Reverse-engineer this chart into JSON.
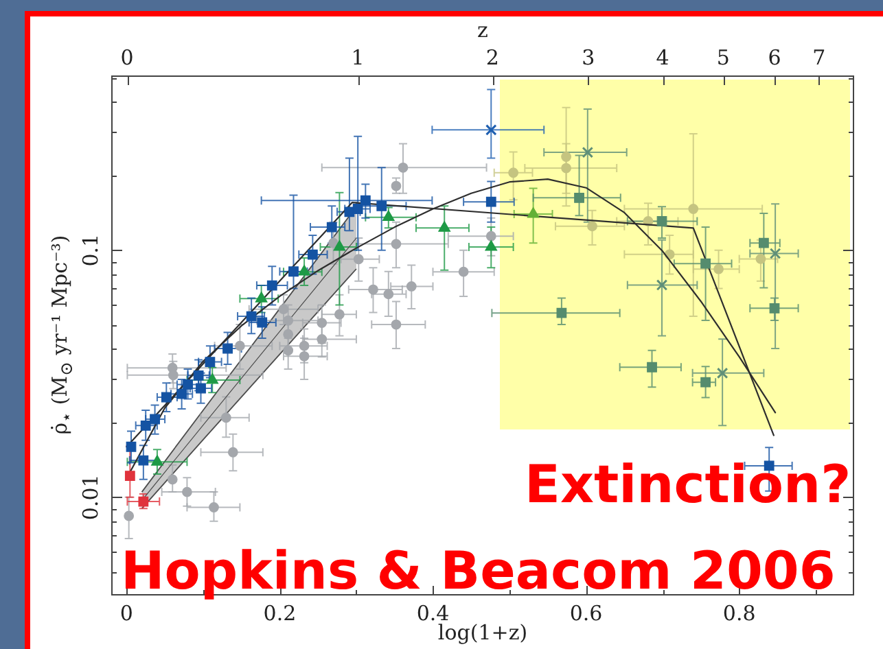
{
  "chart_data": {
    "type": "scatter",
    "xlabel": "log(1+z)",
    "ylabel": "ρ̇$_{⋆}$ (M$_{⊙}$ yr⁻¹ Mpc⁻³)",
    "x2label": "z",
    "xlim": [
      -0.02,
      0.95
    ],
    "xticks": [
      0,
      {
        "value": 0.1,
        "label": null
      },
      0.2,
      {
        "value": 0.3,
        "label": null
      },
      0.4,
      {
        "value": 0.5,
        "label": null
      },
      0.6,
      {
        "value": 0.7,
        "label": null
      },
      0.8,
      {
        "value": 0.9,
        "label": null
      }
    ],
    "ylim": [
      0.004,
      0.51
    ],
    "yticks": [
      {
        "value": 0.005,
        "label": null
      },
      {
        "value": 0.006,
        "label": null
      },
      {
        "value": 0.007,
        "label": null
      },
      {
        "value": 0.008,
        "label": null
      },
      {
        "value": 0.009,
        "label": null
      },
      0.01,
      {
        "value": 0.02,
        "label": null
      },
      {
        "value": 0.03,
        "label": null
      },
      {
        "value": 0.04,
        "label": null
      },
      {
        "value": 0.05,
        "label": null
      },
      {
        "value": 0.06,
        "label": null
      },
      {
        "value": 0.07,
        "label": null
      },
      {
        "value": 0.08,
        "label": null
      },
      {
        "value": 0.09,
        "label": null
      },
      0.1,
      {
        "value": 0.2,
        "label": null
      },
      {
        "value": 0.3,
        "label": null
      },
      {
        "value": 0.4,
        "label": null
      },
      {
        "value": 0.5,
        "label": null
      }
    ],
    "log": "y",
    "annotations": [
      "Extinction?",
      "Hopkins & Beacom 2006",
      "0",
      "1",
      "2",
      "3",
      "4",
      "5",
      "6",
      "7"
    ],
    "series": [
      {
        "type": "line",
        "color": "#4d4d4d",
        "marker": "none",
        "x": [
          0.02,
          0.1,
          0.2,
          0.3
        ],
        "values": [
          0.0097,
          0.0196,
          0.0469,
          0.112
        ],
        "lower": [
          0.009,
          0.0171,
          0.0379,
          0.084
        ],
        "upper": [
          0.0105,
          0.0225,
          0.058,
          0.15
        ]
      },
      {
        "color": "#a4a7ac",
        "marker": "circle",
        "x": [
          0.003,
          0.06,
          0.079,
          0.114,
          0.13,
          0.139,
          0.06,
          0.061,
          0.148,
          0.205,
          0.211,
          0.211,
          0.211,
          0.232,
          0.232,
          0.255,
          0.255,
          0.278,
          0.27,
          0.303,
          0.322,
          0.342,
          0.372,
          0.352,
          0.352,
          0.352,
          0.361,
          0.44,
          0.476,
          0.505,
          0.574,
          0.574,
          0.608,
          0.681,
          0.709,
          0.74,
          0.773,
          0.828
        ],
        "values": [
          0.0084,
          0.0118,
          0.0105,
          0.0091,
          0.021,
          0.0152,
          0.0334,
          0.0312,
          0.041,
          0.0577,
          0.0519,
          0.0457,
          0.0393,
          0.041,
          0.0372,
          0.0508,
          0.0436,
          0.055,
          0.107,
          0.092,
          0.0693,
          0.0664,
          0.0714,
          0.05,
          0.106,
          0.182,
          0.216,
          0.0818,
          0.114,
          0.206,
          0.239,
          0.215,
          0.125,
          0.131,
          0.0962,
          0.147,
          0.0839,
          0.0922
        ],
        "colors": [
          null,
          null,
          null,
          null,
          null,
          null,
          null,
          null,
          null,
          null,
          null,
          null,
          null,
          null,
          null,
          null,
          null,
          null,
          null,
          null,
          null,
          null,
          null,
          null,
          null,
          null,
          null,
          null,
          null,
          "#c5c480",
          "#c5c480",
          "#c5c480",
          "#c5c480",
          "#c5c480",
          "#c5c480",
          "#c5c480",
          "#c5c480",
          "#c5c480"
        ],
        "errors": [
          [
            0.0068,
            0.01
          ],
          [
            0.0105,
            0.0135
          ],
          [
            0.0092,
            0.012
          ],
          [
            0.008,
            0.0105
          ],
          [
            0.0175,
            0.0255
          ],
          [
            0.0128,
            0.018
          ],
          [
            0.029,
            0.038
          ],
          [
            0.0275,
            0.0355
          ],
          [
            0.033,
            0.05
          ],
          [
            0.05,
            0.066
          ],
          [
            0.044,
            0.06
          ],
          [
            0.039,
            0.053
          ],
          [
            0.033,
            0.046
          ],
          [
            0.035,
            0.048
          ],
          [
            0.03,
            0.044
          ],
          [
            0.042,
            0.06
          ],
          [
            0.037,
            0.051
          ],
          [
            0.045,
            0.066
          ],
          [
            0.088,
            0.13
          ],
          [
            0.075,
            0.112
          ],
          [
            0.056,
            0.085
          ],
          [
            0.054,
            0.082
          ],
          [
            0.058,
            0.087
          ],
          [
            0.04,
            0.062
          ],
          [
            0.085,
            0.13
          ],
          [
            0.17,
            0.196
          ],
          [
            0.17,
            0.27
          ],
          [
            0.065,
            0.1
          ],
          [
            0.095,
            0.135
          ],
          [
            0.16,
            0.25
          ],
          [
            0.151,
            0.378
          ],
          [
            0.17,
            0.27
          ],
          [
            0.105,
            0.145
          ],
          [
            0.105,
            0.155
          ],
          [
            0.08,
            0.115
          ],
          [
            0.054,
            0.296
          ],
          [
            0.07,
            0.1
          ],
          [
            0.075,
            0.11
          ]
        ],
        "xerrors": [
          null,
          null,
          [
            0.046,
            0.116
          ],
          [
            0.079,
            0.148
          ],
          [
            0.097,
            0.16
          ],
          [
            0.097,
            0.178
          ],
          [
            0.001,
            0.13
          ],
          [
            0.001,
            0.178
          ],
          [
            0.115,
            0.19
          ],
          [
            0.16,
            0.25
          ],
          [
            0.17,
            0.25
          ],
          null,
          null,
          [
            0.2,
            0.262
          ],
          [
            0.205,
            0.262
          ],
          [
            0.23,
            0.28
          ],
          [
            0.23,
            0.3
          ],
          [
            0.255,
            0.3
          ],
          null,
          [
            0.28,
            0.33
          ],
          [
            0.29,
            0.36
          ],
          [
            0.32,
            0.365
          ],
          [
            0.345,
            0.4
          ],
          [
            0.32,
            0.39
          ],
          [
            0.3,
            0.42
          ],
          null,
          [
            0.255,
            0.47
          ],
          [
            0.4,
            0.48
          ],
          [
            0.42,
            0.505
          ],
          [
            0.48,
            0.53
          ],
          null,
          [
            0.52,
            0.64
          ],
          [
            0.56,
            0.65
          ],
          [
            0.64,
            0.72
          ],
          [
            0.65,
            0.74
          ],
          [
            0.65,
            0.83
          ],
          [
            0.74,
            0.8
          ],
          [
            0.8,
            0.85
          ]
        ]
      },
      {
        "type": "line",
        "color": "#2e2e2e",
        "marker": "none",
        "x": [
          0,
          0.2945,
          0.74,
          0.845
        ],
        "values": [
          0.016,
          0.156,
          0.123,
          0.0178
        ]
      },
      {
        "type": "line",
        "color": "#2e2e2e",
        "marker": "none",
        "x": [
          0,
          0.05,
          0.1,
          0.15,
          0.2,
          0.25,
          0.3,
          0.35,
          0.4,
          0.45,
          0.5,
          0.55,
          0.6,
          0.65,
          0.7,
          0.75,
          0.8,
          0.847
        ],
        "values": [
          0.0119,
          0.023,
          0.0355,
          0.0494,
          0.0651,
          0.0827,
          0.102,
          0.124,
          0.147,
          0.17,
          0.189,
          0.194,
          0.179,
          0.142,
          0.099,
          0.062,
          0.037,
          0.022
        ]
      },
      {
        "color": "#e0333c",
        "marker": "square",
        "x": [
          0.0045,
          0.022
        ],
        "values": [
          0.0122,
          0.0096
        ],
        "errors": [
          [
            0.01,
            0.0161
          ],
          [
            0.009,
            0.0103
          ]
        ],
        "xerrors": [
          null,
          [
            0.001,
            0.043
          ]
        ]
      },
      {
        "color": "#1e9a46",
        "marker": "triangle",
        "x": [
          0.04,
          0.112,
          0.176,
          0.232,
          0.278,
          0.342,
          0.415,
          0.476,
          0.531
        ],
        "values": [
          0.0139,
          0.0298,
          0.0637,
          0.0818,
          0.103,
          0.136,
          0.123,
          0.103,
          0.14
        ],
        "colors": [
          null,
          null,
          null,
          null,
          null,
          null,
          null,
          null,
          "#62b036"
        ],
        "errors": [
          [
            0.0124,
            0.0156
          ],
          [
            0.0265,
            0.0335
          ],
          [
            0.056,
            0.072
          ],
          [
            0.072,
            0.093
          ],
          [
            0.06,
            0.171
          ],
          [
            0.123,
            0.149
          ],
          [
            0.083,
            0.151
          ],
          [
            0.085,
            0.124
          ],
          [
            0.107,
            0.178
          ]
        ],
        "xerrors": [
          [
            0.001,
            0.079
          ],
          [
            0.079,
            0.148
          ],
          [
            0.148,
            0.198
          ],
          [
            0.205,
            0.255
          ],
          [
            0.253,
            0.3
          ],
          [
            0.312,
            0.378
          ],
          [
            0.378,
            0.447
          ],
          [
            0.447,
            0.505
          ],
          [
            0.506,
            0.556
          ]
        ]
      },
      {
        "color": "#1453a3",
        "marker": "square",
        "x": [
          0.006,
          0.022,
          0.025,
          0.037,
          0.052,
          0.072,
          0.08,
          0.094,
          0.097,
          0.109,
          0.132,
          0.163,
          0.177,
          0.19,
          0.218,
          0.243,
          0.268,
          0.291,
          0.302,
          0.312,
          0.333,
          0.476,
          0.568,
          0.591,
          0.686,
          0.699,
          0.756,
          0.756,
          0.832,
          0.839,
          0.846
        ],
        "values": [
          0.016,
          0.0141,
          0.0195,
          0.0207,
          0.0254,
          0.0262,
          0.0286,
          0.0311,
          0.0276,
          0.0353,
          0.04,
          0.054,
          0.051,
          0.072,
          0.082,
          0.096,
          0.124,
          0.143,
          0.147,
          0.159,
          0.151,
          0.157,
          0.0557,
          0.163,
          0.0336,
          0.131,
          0.0292,
          0.0883,
          0.107,
          0.0134,
          0.0582
        ],
        "colors": [
          null,
          null,
          null,
          null,
          null,
          null,
          null,
          null,
          null,
          null,
          null,
          null,
          null,
          null,
          null,
          null,
          null,
          null,
          null,
          null,
          null,
          null,
          "#558c6e",
          "#558c6e",
          "#558c6e",
          "#558c6e",
          "#558c6e",
          "#558c6e",
          "#558c6e",
          null,
          "#558c6e"
        ],
        "errors": [
          [
            0.0138,
            0.0185
          ],
          [
            0.0118,
            0.0162
          ],
          [
            0.017,
            0.0225
          ],
          [
            0.018,
            0.0236
          ],
          [
            0.0222,
            0.029
          ],
          [
            0.0228,
            0.03
          ],
          [
            0.025,
            0.033
          ],
          [
            0.027,
            0.036
          ],
          [
            0.024,
            0.0318
          ],
          [
            0.0305,
            0.041
          ],
          [
            0.0345,
            0.0465
          ],
          [
            0.046,
            0.064
          ],
          [
            0.044,
            0.059
          ],
          [
            0.06,
            0.086
          ],
          [
            0.07,
            0.167
          ],
          [
            0.08,
            0.115
          ],
          [
            0.107,
            0.151
          ],
          [
            0.12,
            0.236
          ],
          [
            0.1,
            0.289
          ],
          [
            0.135,
            0.185
          ],
          [
            0.1,
            0.216
          ],
          [
            0.13,
            0.19
          ],
          [
            0.05,
            0.064
          ],
          [
            0.138,
            0.242
          ],
          [
            0.0279,
            0.0393
          ],
          [
            0.112,
            0.15
          ],
          [
            0.0253,
            0.0338
          ],
          [
            0.052,
            0.124
          ],
          [
            0.0705,
            0.141
          ],
          [
            0.0106,
            0.0159
          ],
          [
            0.052,
            0.064
          ]
        ],
        "xerrors": [
          null,
          [
            0.004,
            0.04
          ],
          [
            0.012,
            0.04
          ],
          [
            0.025,
            0.05
          ],
          [
            0.04,
            0.066
          ],
          [
            0.058,
            0.086
          ],
          [
            0.066,
            0.094
          ],
          [
            0.08,
            0.108
          ],
          [
            0.083,
            0.111
          ],
          [
            0.094,
            0.124
          ],
          [
            0.115,
            0.15
          ],
          [
            0.145,
            0.18
          ],
          [
            0.16,
            0.195
          ],
          [
            0.17,
            0.21
          ],
          [
            0.2,
            0.236
          ],
          [
            0.225,
            0.262
          ],
          [
            0.24,
            0.285
          ],
          [
            0.275,
            0.305
          ],
          [
            0.285,
            0.318
          ],
          [
            0.176,
            0.399
          ],
          [
            0.3,
            0.365
          ],
          [
            0.44,
            0.506
          ],
          [
            0.477,
            0.644
          ],
          [
            0.531,
            0.645
          ],
          [
            0.644,
            0.724
          ],
          [
            0.654,
            0.745
          ],
          [
            0.739,
            0.769
          ],
          [
            0.715,
            0.79
          ],
          [
            0.814,
            0.853
          ],
          [
            0.807,
            0.869
          ],
          [
            0.814,
            0.877
          ]
        ]
      },
      {
        "color": "#1f5fb0",
        "marker": "cross",
        "x": [
          0.476,
          0.602,
          0.699,
          0.778,
          0.847
        ],
        "values": [
          0.307,
          0.249,
          0.0723,
          0.0318,
          0.097
        ],
        "colors": [
          null,
          "#5f8f78",
          "#5f8f78",
          "#5f8f78",
          "#5f8f78"
        ],
        "errors": [
          [
            0.236,
            0.447
          ],
          [
            0.13,
            0.373
          ],
          [
            0.045,
            0.11
          ],
          [
            0.0195,
            0.0437
          ],
          [
            0.04,
            0.154
          ]
        ],
        "xerrors": [
          [
            0.399,
            0.545
          ],
          [
            0.545,
            0.653
          ],
          [
            0.654,
            0.745
          ],
          [
            0.739,
            0.832
          ],
          [
            0.814,
            0.877
          ]
        ]
      }
    ]
  }
}
